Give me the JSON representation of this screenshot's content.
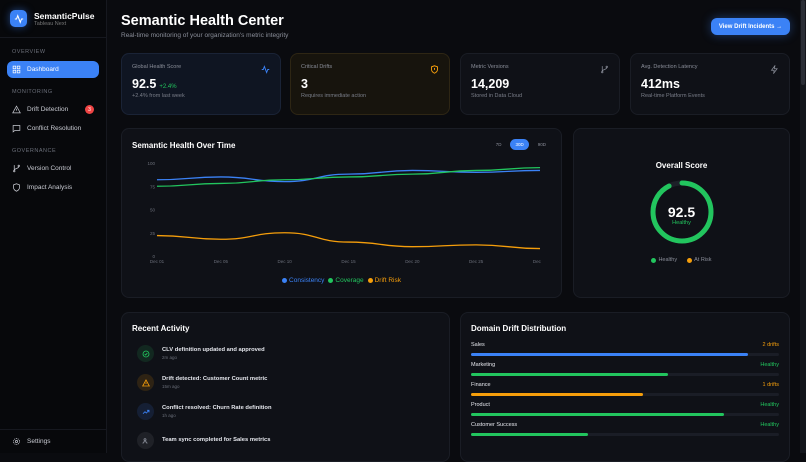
{
  "app": {
    "name": "SemanticPulse",
    "subtitle": "Tableau Next"
  },
  "sidebar": {
    "sections": [
      {
        "title": "OVERVIEW",
        "items": [
          {
            "label": "Dashboard",
            "icon": "grid-icon",
            "active": true
          }
        ]
      },
      {
        "title": "MONITORING",
        "items": [
          {
            "label": "Drift Detection",
            "icon": "warning-icon",
            "badge": "3"
          },
          {
            "label": "Conflict Resolution",
            "icon": "message-icon"
          }
        ]
      },
      {
        "title": "GOVERNANCE",
        "items": [
          {
            "label": "Version Control",
            "icon": "branch-icon"
          },
          {
            "label": "Impact Analysis",
            "icon": "shield-icon"
          }
        ]
      }
    ],
    "settings": "Settings"
  },
  "header": {
    "title": "Semantic Health Center",
    "subtitle": "Real-time monitoring of your organization's metric integrity",
    "cta": "View Drift Incidents →"
  },
  "stats": [
    {
      "label": "Global Health Score",
      "value": "92.5",
      "delta": "+2.4%",
      "note": "+2.4% from last week",
      "icon": "activity-icon"
    },
    {
      "label": "Critical Drifts",
      "value": "3",
      "note": "Requires immediate action",
      "icon": "shield-alert-icon"
    },
    {
      "label": "Metric Versions",
      "value": "14,209",
      "note": "Stored in Data Cloud",
      "icon": "branch-icon"
    },
    {
      "label": "Avg. Detection Latency",
      "value": "412ms",
      "note": "Real-time Platform Events",
      "icon": "zap-icon"
    }
  ],
  "chart_data": {
    "type": "line",
    "title": "Semantic Health Over Time",
    "tabs": [
      "7D",
      "30D",
      "90D"
    ],
    "active_tab": "30D",
    "categories": [
      "Dec 01",
      "Dec 05",
      "Dec 10",
      "Dec 15",
      "Dec 20",
      "Dec 25",
      "Dec 30"
    ],
    "yticks": [
      0,
      25,
      50,
      75,
      100
    ],
    "ylim": [
      0,
      100
    ],
    "grid": false,
    "legend": "bottom",
    "series": [
      {
        "name": "Consistency",
        "color": "#3b82f6",
        "values": [
          82,
          85,
          80,
          88,
          92,
          90,
          92
        ]
      },
      {
        "name": "Coverage",
        "color": "#22c55e",
        "values": [
          75,
          78,
          82,
          85,
          88,
          92,
          95
        ]
      },
      {
        "name": "Drift Risk",
        "color": "#f59e0b",
        "values": [
          22,
          18,
          25,
          15,
          10,
          12,
          8
        ]
      }
    ]
  },
  "overall": {
    "title": "Overall Score",
    "value": "92.5",
    "status": "Healthy",
    "percent": 92.5,
    "legend": [
      "Healthy",
      "At Risk"
    ]
  },
  "activity": {
    "title": "Recent Activity",
    "items": [
      {
        "text": "CLV definition updated and approved",
        "time": "2m ago",
        "icon": "check-circle-icon",
        "color": "#22c55e"
      },
      {
        "text": "Drift detected: Customer Count metric",
        "time": "15m ago",
        "icon": "warning-icon",
        "color": "#f59e0b"
      },
      {
        "text": "Conflict resolved: Churn Rate definition",
        "time": "1h ago",
        "icon": "trending-up-icon",
        "color": "#3b82f6"
      },
      {
        "text": "Team sync completed for Sales metrics",
        "time": "",
        "icon": "users-icon",
        "color": "#8a8e99"
      }
    ]
  },
  "domains": {
    "title": "Domain Drift Distribution",
    "items": [
      {
        "name": "Sales",
        "status": "2 drifts",
        "percent": 90,
        "color": "#3b82f6",
        "statusColor": "#f59e0b"
      },
      {
        "name": "Marketing",
        "status": "Healthy",
        "percent": 64,
        "color": "#22c55e",
        "statusColor": "#22c55e"
      },
      {
        "name": "Finance",
        "status": "1 drifts",
        "percent": 56,
        "color": "#f59e0b",
        "statusColor": "#f59e0b"
      },
      {
        "name": "Product",
        "status": "Healthy",
        "percent": 82,
        "color": "#22c55e",
        "statusColor": "#22c55e"
      },
      {
        "name": "Customer Success",
        "status": "Healthy",
        "percent": 38,
        "color": "#22c55e",
        "statusColor": "#22c55e"
      }
    ]
  }
}
